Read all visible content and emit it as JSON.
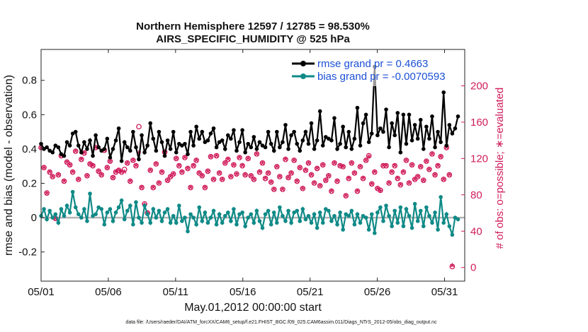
{
  "chart_data": {
    "type": "line",
    "title": "Northern Hemisphere 12597 / 12785 = 98.530%",
    "subtitle": "AIRS_SPECIFIC_HUMIDITY @ 525 hPa",
    "xlabel": "May.01,2012 00:00:00 start",
    "ylabel": "rmse and bias (model - observation)",
    "y2label": "# of obs: o=possible; ∗=evaluated",
    "xlim": [
      0,
      31.5
    ],
    "ylim": [
      -0.37,
      0.98
    ],
    "y2lim": [
      -15,
      240
    ],
    "x_tick_positions": [
      0,
      5,
      10,
      15,
      20,
      25,
      30
    ],
    "x_tick_labels": [
      "05/01",
      "05/06",
      "05/11",
      "05/16",
      "05/21",
      "05/26",
      "05/31"
    ],
    "y_ticks": [
      -0.2,
      0,
      0.2,
      0.4,
      0.6,
      0.8
    ],
    "y_tick_labels": [
      "-0.2",
      "0",
      "0.2",
      "0.4",
      "0.6",
      "0.8"
    ],
    "y2_ticks": [
      0,
      40,
      80,
      120,
      160,
      200
    ],
    "y2_tick_labels": [
      "0",
      "40",
      "80",
      "120",
      "160",
      "200"
    ],
    "colors": {
      "rmse": "#000000",
      "bias": "#0f8a87",
      "obs": "#d01c5b",
      "legend_text": "#1a4fd6",
      "zero_line": "#b4b4b4"
    },
    "footer": "data file: /Users/raeder/DAI/ATM_forcXX/CAM6_setup/f.e21.FHIST_BGC.f09_025.CAM6assim.011/Diags_NTrS_2012-05/obs_diag_output.nc",
    "series": [
      {
        "name": "rmse grand pr = 0.4663",
        "marker": "filled-circle",
        "values": [
          0.43,
          0.4,
          0.41,
          0.39,
          0.38,
          0.42,
          0.41,
          0.37,
          0.36,
          0.44,
          0.42,
          0.49,
          0.5,
          0.42,
          0.38,
          0.44,
          0.4,
          0.45,
          0.36,
          0.48,
          0.41,
          0.39,
          0.4,
          0.46,
          0.35,
          0.4,
          0.45,
          0.52,
          0.33,
          0.44,
          0.41,
          0.39,
          0.5,
          0.41,
          0.34,
          0.48,
          0.38,
          0.42,
          0.55,
          0.46,
          0.39,
          0.5,
          0.44,
          0.36,
          0.45,
          0.4,
          0.5,
          0.38,
          0.43,
          0.42,
          0.43,
          0.37,
          0.5,
          0.42,
          0.53,
          0.46,
          0.5,
          0.44,
          0.45,
          0.49,
          0.52,
          0.41,
          0.44,
          0.45,
          0.4,
          0.48,
          0.46,
          0.51,
          0.39,
          0.44,
          0.51,
          0.38,
          0.43,
          0.41,
          0.47,
          0.4,
          0.44,
          0.42,
          0.41,
          0.5,
          0.43,
          0.39,
          0.5,
          0.41,
          0.44,
          0.54,
          0.4,
          0.48,
          0.5,
          0.43,
          0.39,
          0.45,
          0.5,
          0.43,
          0.55,
          0.4,
          0.45,
          0.62,
          0.42,
          0.47,
          0.46,
          0.45,
          0.58,
          0.4,
          0.43,
          0.53,
          0.41,
          0.5,
          0.4,
          0.46,
          0.64,
          0.42,
          0.55,
          0.6,
          0.44,
          0.49,
          0.88,
          0.48,
          0.52,
          0.5,
          0.63,
          0.41,
          0.55,
          0.48,
          0.61,
          0.38,
          0.6,
          0.43,
          0.6,
          0.45,
          0.54,
          0.46,
          0.57,
          0.4,
          0.53,
          0.46,
          0.59,
          0.41,
          0.5,
          0.44,
          0.73,
          0.42,
          0.54,
          0.49,
          0.52,
          0.59
        ]
      },
      {
        "name": "bias grand pr = -0.0070593",
        "marker": "filled-circle",
        "values": [
          0.01,
          0.05,
          -0.01,
          0.04,
          0.0,
          0.02,
          -0.03,
          0.05,
          0.01,
          0.07,
          0.03,
          0.15,
          0.06,
          0.02,
          0.0,
          0.05,
          -0.02,
          0.14,
          0.01,
          0.02,
          0.06,
          0.05,
          -0.04,
          0.03,
          0.05,
          -0.02,
          0.03,
          0.06,
          0.1,
          -0.01,
          0.04,
          0.07,
          -0.04,
          0.09,
          0.0,
          -0.03,
          0.07,
          0.02,
          -0.03,
          0.05,
          0.0,
          0.04,
          -0.02,
          0.03,
          0.05,
          -0.03,
          0.01,
          -0.03,
          0.07,
          -0.02,
          0.0,
          -0.08,
          0.02,
          0.0,
          -0.04,
          0.06,
          -0.02,
          0.03,
          -0.03,
          0.0,
          0.04,
          -0.04,
          0.02,
          -0.03,
          0.01,
          0.03,
          -0.02,
          0.05,
          -0.04,
          0.02,
          0.03,
          -0.05,
          0.0,
          0.02,
          -0.03,
          0.04,
          -0.02,
          -0.06,
          0.02,
          0.04,
          -0.04,
          0.03,
          -0.03,
          0.06,
          0.01,
          -0.02,
          0.04,
          -0.03,
          0.03,
          0.04,
          -0.02,
          0.05,
          -0.01,
          0.01,
          -0.03,
          0.02,
          -0.06,
          0.03,
          -0.03,
          0.05,
          0.04,
          -0.02,
          0.01,
          -0.04,
          0.03,
          -0.07,
          0.02,
          0.01,
          0.04,
          -0.04,
          0.02,
          -0.03,
          0.01,
          0.0,
          -0.07,
          0.02,
          -0.09,
          0.03,
          0.06,
          -0.02,
          0.07,
          0.01,
          -0.05,
          0.04,
          -0.03,
          0.06,
          -0.05,
          0.05,
          0.01,
          -0.06,
          0.08,
          -0.02,
          0.04,
          -0.05,
          0.06,
          0.01,
          -0.03,
          0.03,
          -0.07,
          0.12,
          -0.03,
          0.02,
          -0.05,
          -0.1,
          0.0,
          -0.01
        ]
      }
    ],
    "obs_evaluated": [
      130,
      108,
      80,
      103,
      98,
      52,
      100,
      121,
      93,
      114,
      111,
      103,
      126,
      95,
      117,
      124,
      99,
      112,
      110,
      130,
      104,
      100,
      127,
      108,
      115,
      97,
      103,
      105,
      103,
      103,
      113,
      93,
      116,
      110,
      124,
      86,
      67,
      58,
      105,
      86,
      112,
      91,
      103,
      125,
      94,
      98,
      101,
      118,
      110,
      103,
      119,
      107,
      86,
      110,
      116,
      102,
      99,
      86,
      104,
      120,
      95,
      121,
      102,
      95,
      113,
      117,
      98,
      111,
      101,
      119,
      110,
      100,
      118,
      99,
      95,
      123,
      103,
      113,
      96,
      102,
      92,
      84,
      109,
      98,
      84,
      117,
      97,
      102,
      116,
      93,
      108,
      85,
      105,
      113,
      100,
      91,
      107,
      88,
      111,
      94,
      99,
      82,
      113,
      93,
      110,
      109,
      77,
      96,
      113,
      102,
      82,
      109,
      96,
      116,
      120,
      90,
      103,
      85,
      82,
      110,
      110,
      91,
      103,
      110,
      96,
      89,
      103,
      116,
      91,
      111,
      95,
      98,
      109,
      94,
      115,
      106,
      123,
      100,
      110,
      120,
      95,
      130,
      100,
      0
    ],
    "obs_possible": [
      132,
      110,
      82,
      105,
      100,
      54,
      102,
      123,
      95,
      116,
      113,
      105,
      128,
      97,
      119,
      126,
      101,
      114,
      112,
      132,
      106,
      102,
      129,
      110,
      117,
      99,
      105,
      107,
      105,
      108,
      115,
      95,
      118,
      112,
      155,
      88,
      70,
      60,
      107,
      88,
      114,
      93,
      105,
      127,
      96,
      100,
      103,
      120,
      112,
      105,
      121,
      109,
      88,
      112,
      118,
      104,
      101,
      88,
      106,
      122,
      97,
      123,
      104,
      97,
      115,
      119,
      100,
      113,
      103,
      121,
      112,
      102,
      120,
      101,
      97,
      125,
      105,
      115,
      98,
      104,
      94,
      86,
      111,
      100,
      86,
      119,
      99,
      104,
      118,
      95,
      110,
      87,
      107,
      115,
      102,
      93,
      109,
      90,
      113,
      96,
      101,
      84,
      115,
      95,
      112,
      111,
      79,
      98,
      115,
      104,
      84,
      111,
      98,
      118,
      123,
      92,
      105,
      87,
      85,
      112,
      112,
      93,
      105,
      112,
      98,
      91,
      105,
      118,
      93,
      113,
      97,
      100,
      111,
      96,
      117,
      108,
      125,
      102,
      112,
      122,
      97,
      132,
      102,
      1
    ]
  }
}
